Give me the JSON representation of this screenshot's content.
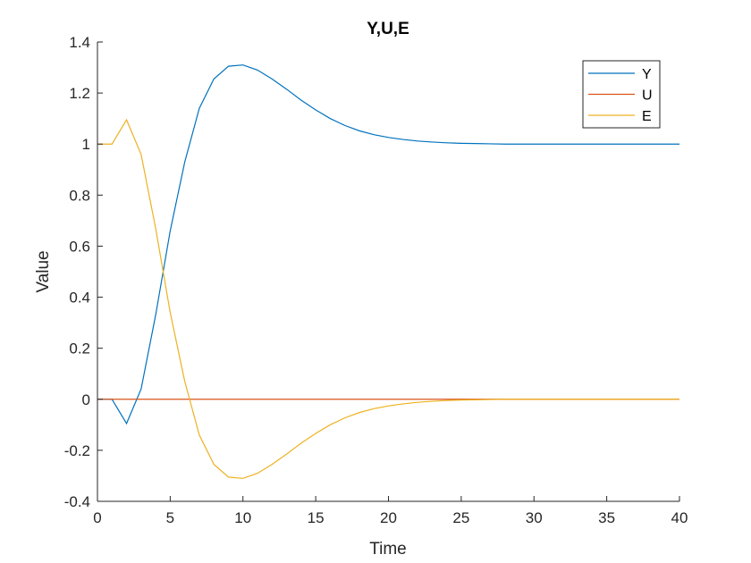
{
  "chart_data": {
    "type": "line",
    "title": "Y,U,E",
    "xlabel": "Time",
    "ylabel": "Value",
    "xlim": [
      0,
      40
    ],
    "ylim": [
      -0.4,
      1.4
    ],
    "xticks": [
      0,
      5,
      10,
      15,
      20,
      25,
      30,
      35,
      40
    ],
    "yticks": [
      -0.4,
      -0.2,
      0,
      0.2,
      0.4,
      0.6,
      0.8,
      1,
      1.2,
      1.4
    ],
    "x_tick_labels": [
      "0",
      "5",
      "10",
      "15",
      "20",
      "25",
      "30",
      "35",
      "40"
    ],
    "y_tick_labels": [
      "-0.4",
      "-0.2",
      "0",
      "0.2",
      "0.4",
      "0.6",
      "0.8",
      "1",
      "1.2",
      "1.4"
    ],
    "grid": false,
    "legend_position": "top-right",
    "series": [
      {
        "name": "Y",
        "color": "#0072BD",
        "points": [
          [
            0,
            0
          ],
          [
            1,
            0
          ],
          [
            2,
            -0.095
          ],
          [
            3,
            0.04
          ],
          [
            4,
            0.33
          ],
          [
            5,
            0.66
          ],
          [
            6,
            0.93
          ],
          [
            7,
            1.14
          ],
          [
            8,
            1.255
          ],
          [
            9,
            1.305
          ],
          [
            10,
            1.31
          ],
          [
            11,
            1.29
          ],
          [
            12,
            1.255
          ],
          [
            13,
            1.215
          ],
          [
            14,
            1.172
          ],
          [
            15,
            1.134
          ],
          [
            16,
            1.1
          ],
          [
            17,
            1.073
          ],
          [
            18,
            1.052
          ],
          [
            19,
            1.037
          ],
          [
            20,
            1.026
          ],
          [
            21,
            1.018
          ],
          [
            22,
            1.012
          ],
          [
            23,
            1.008
          ],
          [
            24,
            1.005
          ],
          [
            25,
            1.003
          ],
          [
            26,
            1.002
          ],
          [
            27,
            1.001
          ],
          [
            28,
            1.0
          ],
          [
            30,
            1.0
          ],
          [
            35,
            1.0
          ],
          [
            40,
            1.0
          ]
        ]
      },
      {
        "name": "U",
        "color": "#D95319",
        "points": [
          [
            0,
            0
          ],
          [
            40,
            0
          ]
        ]
      },
      {
        "name": "E",
        "color": "#EDB120",
        "points": [
          [
            0,
            1
          ],
          [
            1,
            1
          ],
          [
            2,
            1.095
          ],
          [
            3,
            0.96
          ],
          [
            4,
            0.67
          ],
          [
            5,
            0.34
          ],
          [
            6,
            0.07
          ],
          [
            7,
            -0.14
          ],
          [
            8,
            -0.255
          ],
          [
            9,
            -0.305
          ],
          [
            10,
            -0.31
          ],
          [
            11,
            -0.29
          ],
          [
            12,
            -0.255
          ],
          [
            13,
            -0.215
          ],
          [
            14,
            -0.172
          ],
          [
            15,
            -0.134
          ],
          [
            16,
            -0.1
          ],
          [
            17,
            -0.073
          ],
          [
            18,
            -0.052
          ],
          [
            19,
            -0.037
          ],
          [
            20,
            -0.026
          ],
          [
            21,
            -0.018
          ],
          [
            22,
            -0.012
          ],
          [
            23,
            -0.008
          ],
          [
            24,
            -0.005
          ],
          [
            25,
            -0.003
          ],
          [
            26,
            -0.002
          ],
          [
            27,
            -0.001
          ],
          [
            28,
            0
          ],
          [
            30,
            0
          ],
          [
            35,
            0
          ],
          [
            40,
            0
          ]
        ]
      }
    ]
  }
}
